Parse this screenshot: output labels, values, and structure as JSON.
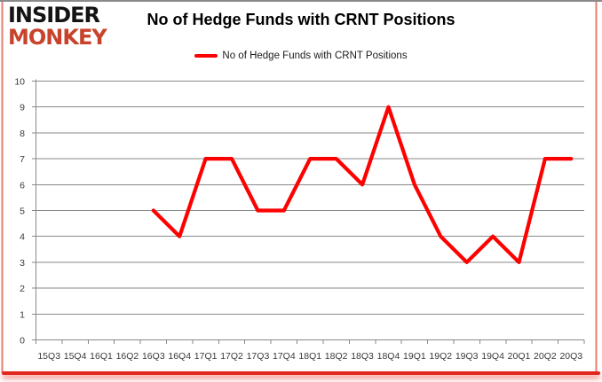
{
  "logo": {
    "line1": "INSIDER",
    "line2": "MONKEY"
  },
  "header": {
    "title": "No of Hedge Funds with CRNT Positions"
  },
  "legend": {
    "label": "No of Hedge Funds with CRNT Positions"
  },
  "chart_data": {
    "type": "line",
    "title": "No of Hedge Funds with CRNT Positions",
    "categories": [
      "15Q3",
      "15Q4",
      "16Q1",
      "16Q2",
      "16Q3",
      "16Q4",
      "17Q1",
      "17Q2",
      "17Q3",
      "17Q4",
      "18Q1",
      "18Q2",
      "18Q3",
      "18Q4",
      "19Q1",
      "19Q2",
      "19Q3",
      "19Q4",
      "20Q1",
      "20Q2",
      "20Q3"
    ],
    "series": [
      {
        "name": "No of Hedge Funds with CRNT Positions",
        "color": "#ff0000",
        "values": [
          null,
          null,
          null,
          null,
          5,
          4,
          7,
          7,
          5,
          5,
          7,
          7,
          6,
          9,
          6,
          4,
          3,
          4,
          3,
          7,
          7
        ]
      }
    ],
    "xlabel": "",
    "ylabel": "",
    "ylim": [
      0,
      10
    ],
    "yticks": [
      0,
      1,
      2,
      3,
      4,
      5,
      6,
      7,
      8,
      9,
      10
    ],
    "grid": true,
    "legend_position": "top-center"
  },
  "colors": {
    "line_red": "#ff0000",
    "logo_black": "#141414",
    "logo_red": "#c7432c",
    "grid_gray": "#898989",
    "axis_text": "#3a3a3a",
    "border_gray": "#8a8a8a",
    "border_red": "#e3261d",
    "side_glow": "#e2685a"
  }
}
